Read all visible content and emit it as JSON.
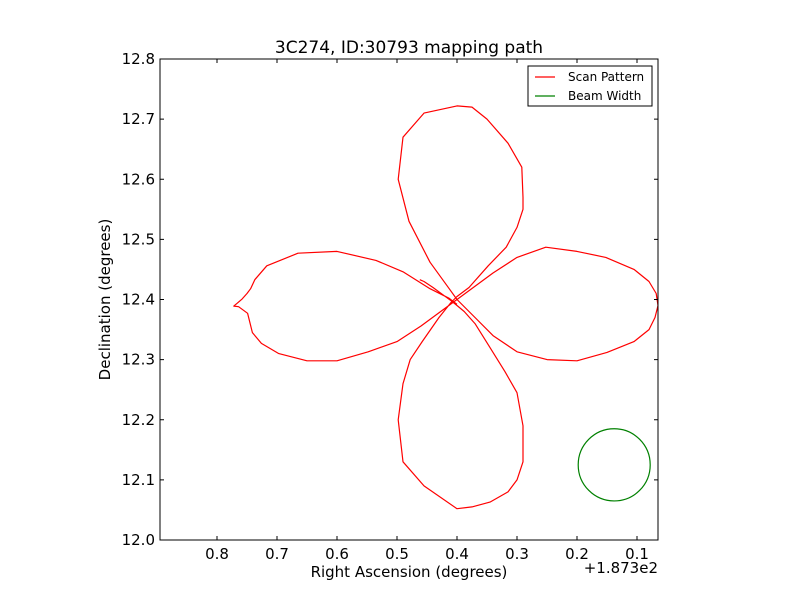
{
  "chart_data": {
    "type": "line",
    "title": "3C274, ID:30793 mapping path",
    "xlabel": "Right Ascension (degrees)",
    "ylabel": "Declination (degrees)",
    "x_offset_label": "+1.873e2",
    "xlim": [
      0.895,
      0.065
    ],
    "ylim": [
      12.0,
      12.8
    ],
    "x_inverted": true,
    "grid": false,
    "legend_position": "top-right",
    "x_ticks": [
      "0.8",
      "0.7",
      "0.6",
      "0.5",
      "0.4",
      "0.3",
      "0.2",
      "0.1"
    ],
    "y_ticks": [
      "12.0",
      "12.1",
      "12.2",
      "12.3",
      "12.4",
      "12.5",
      "12.6",
      "12.7",
      "12.8"
    ],
    "series": [
      {
        "name": "Scan Pattern",
        "color": "#ff0000",
        "style": "line",
        "points": [
          [
            0.4,
            12.392
          ],
          [
            0.413,
            12.402
          ],
          [
            0.445,
            12.418
          ],
          [
            0.49,
            12.446
          ],
          [
            0.535,
            12.465
          ],
          [
            0.6,
            12.48
          ],
          [
            0.665,
            12.477
          ],
          [
            0.717,
            12.456
          ],
          [
            0.737,
            12.433
          ],
          [
            0.744,
            12.418
          ],
          [
            0.75,
            12.41
          ],
          [
            0.758,
            12.401
          ],
          [
            0.766,
            12.394
          ],
          [
            0.772,
            12.389
          ],
          [
            0.764,
            12.388
          ],
          [
            0.749,
            12.377
          ],
          [
            0.741,
            12.345
          ],
          [
            0.726,
            12.327
          ],
          [
            0.697,
            12.31
          ],
          [
            0.65,
            12.298
          ],
          [
            0.6,
            12.298
          ],
          [
            0.548,
            12.313
          ],
          [
            0.5,
            12.33
          ],
          [
            0.46,
            12.356
          ],
          [
            0.4,
            12.4
          ],
          [
            0.34,
            12.444
          ],
          [
            0.3,
            12.47
          ],
          [
            0.252,
            12.487
          ],
          [
            0.2,
            12.48
          ],
          [
            0.152,
            12.47
          ],
          [
            0.105,
            12.45
          ],
          [
            0.08,
            12.43
          ],
          [
            0.068,
            12.41
          ],
          [
            0.065,
            12.39
          ],
          [
            0.07,
            12.37
          ],
          [
            0.08,
            12.35
          ],
          [
            0.105,
            12.33
          ],
          [
            0.15,
            12.312
          ],
          [
            0.2,
            12.298
          ],
          [
            0.25,
            12.3
          ],
          [
            0.3,
            12.313
          ],
          [
            0.34,
            12.34
          ],
          [
            0.37,
            12.37
          ],
          [
            0.4,
            12.4
          ],
          [
            0.413,
            12.418
          ],
          [
            0.445,
            12.462
          ],
          [
            0.48,
            12.53
          ],
          [
            0.498,
            12.6
          ],
          [
            0.49,
            12.67
          ],
          [
            0.455,
            12.71
          ],
          [
            0.4,
            12.722
          ],
          [
            0.375,
            12.72
          ],
          [
            0.35,
            12.7
          ],
          [
            0.315,
            12.66
          ],
          [
            0.292,
            12.62
          ],
          [
            0.29,
            12.57
          ],
          [
            0.29,
            12.55
          ],
          [
            0.3,
            12.52
          ],
          [
            0.318,
            12.487
          ],
          [
            0.348,
            12.456
          ],
          [
            0.38,
            12.42
          ],
          [
            0.4,
            12.405
          ],
          [
            0.41,
            12.395
          ],
          [
            0.43,
            12.37
          ],
          [
            0.458,
            12.33
          ],
          [
            0.478,
            12.3
          ],
          [
            0.49,
            12.26
          ],
          [
            0.498,
            12.2
          ],
          [
            0.49,
            12.13
          ],
          [
            0.455,
            12.09
          ],
          [
            0.4,
            12.052
          ],
          [
            0.375,
            12.055
          ],
          [
            0.345,
            12.063
          ],
          [
            0.315,
            12.08
          ],
          [
            0.3,
            12.1
          ],
          [
            0.29,
            12.13
          ],
          [
            0.29,
            12.19
          ],
          [
            0.3,
            12.245
          ],
          [
            0.32,
            12.28
          ],
          [
            0.345,
            12.32
          ],
          [
            0.37,
            12.36
          ],
          [
            0.388,
            12.38
          ],
          [
            0.4,
            12.39
          ],
          [
            0.41,
            12.398
          ],
          [
            0.44,
            12.42
          ],
          [
            0.455,
            12.43
          ],
          [
            0.462,
            12.433
          ]
        ]
      },
      {
        "name": "Beam Width",
        "color": "#008000",
        "style": "circle",
        "center": [
          0.138,
          12.125
        ],
        "radius_deg": 0.06
      }
    ]
  }
}
